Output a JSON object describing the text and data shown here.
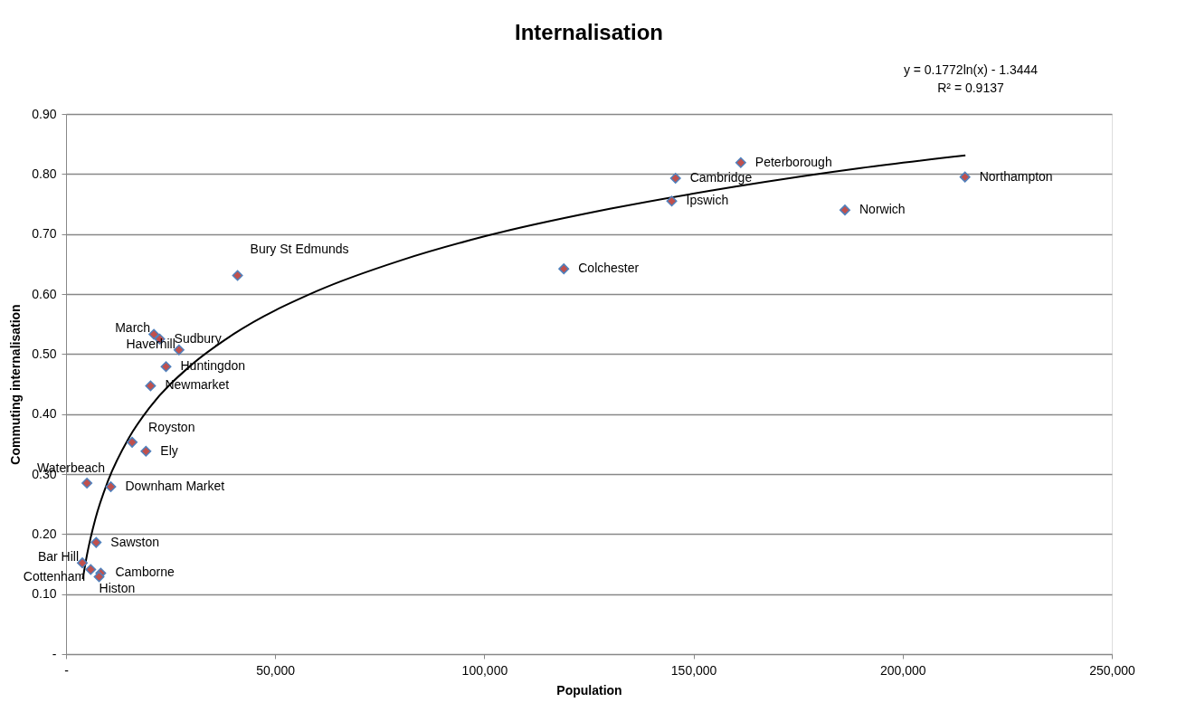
{
  "chart_data": {
    "type": "scatter",
    "title": "Internalisation",
    "xlabel": "Population",
    "ylabel": "Commuting internalisation",
    "xlim": [
      0,
      250000
    ],
    "xticks": [
      {
        "value": 0,
        "label": "-"
      },
      {
        "value": 50000,
        "label": "50,000"
      },
      {
        "value": 100000,
        "label": "100,000"
      },
      {
        "value": 150000,
        "label": "150,000"
      },
      {
        "value": 200000,
        "label": "200,000"
      },
      {
        "value": 250000,
        "label": "250,000"
      }
    ],
    "ylim": [
      0,
      0.9
    ],
    "yticks": [
      {
        "value": 0,
        "label": "-"
      },
      {
        "value": 0.1,
        "label": "0.10"
      },
      {
        "value": 0.2,
        "label": "0.20"
      },
      {
        "value": 0.3,
        "label": "0.30"
      },
      {
        "value": 0.4,
        "label": "0.40"
      },
      {
        "value": 0.5,
        "label": "0.50"
      },
      {
        "value": 0.6,
        "label": "0.60"
      },
      {
        "value": 0.7,
        "label": "0.70"
      },
      {
        "value": 0.8,
        "label": "0.80"
      },
      {
        "value": 0.9,
        "label": "0.90"
      }
    ],
    "grid": "y",
    "marker": "diamond",
    "series": [
      {
        "type": "scatter",
        "color": "#c0504d",
        "x": [
          214900,
          161300,
          145700,
          144800,
          186200,
          119000,
          41000,
          21000,
          22400,
          27000,
          23900,
          20200,
          15800,
          19100,
          5000,
          10700,
          7200,
          3900,
          5900,
          8300,
          7900
        ],
        "values": [
          0.795,
          0.819,
          0.793,
          0.755,
          0.74,
          0.642,
          0.631,
          0.533,
          0.525,
          0.507,
          0.479,
          0.447,
          0.353,
          0.338,
          0.285,
          0.279,
          0.186,
          0.152,
          0.141,
          0.135,
          0.129
        ]
      },
      {
        "type": "line",
        "color": "#000000",
        "marker": "none",
        "x": [
          4000,
          5000,
          7000,
          10000,
          15000,
          20000,
          30000,
          40000,
          60000,
          80000,
          100000,
          130000,
          160000,
          190000,
          215000
        ],
        "values": [
          0.125,
          0.165,
          0.225,
          0.288,
          0.36,
          0.411,
          0.482,
          0.533,
          0.605,
          0.656,
          0.696,
          0.742,
          0.779,
          0.81,
          0.831
        ]
      }
    ],
    "annotations": [
      "y = 0.1772ln(x) - 1.3444",
      "R² = 0.9137",
      {
        "text": "Northampton",
        "x": 214900,
        "y": 0.795
      },
      {
        "text": "Peterborough",
        "x": 161300,
        "y": 0.819
      },
      {
        "text": "Cambridge",
        "x": 145700,
        "y": 0.793
      },
      {
        "text": "Ipswich",
        "x": 144800,
        "y": 0.755
      },
      {
        "text": "Norwich",
        "x": 186200,
        "y": 0.74
      },
      {
        "text": "Colchester",
        "x": 119000,
        "y": 0.642
      },
      {
        "text": "Bury St Edmunds",
        "x": 41000,
        "y": 0.631
      },
      {
        "text": "March",
        "x": 21000,
        "y": 0.533
      },
      {
        "text": "Sudbury",
        "x": 22400,
        "y": 0.525
      },
      {
        "text": "Haverhill",
        "x": 27000,
        "y": 0.507
      },
      {
        "text": "Huntingdon",
        "x": 23900,
        "y": 0.479
      },
      {
        "text": "Newmarket",
        "x": 20200,
        "y": 0.447
      },
      {
        "text": "Royston",
        "x": 15800,
        "y": 0.353
      },
      {
        "text": "Ely",
        "x": 19100,
        "y": 0.338
      },
      {
        "text": "Waterbeach",
        "x": 5000,
        "y": 0.285
      },
      {
        "text": "Downham Market",
        "x": 10700,
        "y": 0.279
      },
      {
        "text": "Sawston",
        "x": 7200,
        "y": 0.186
      },
      {
        "text": "Bar Hill",
        "x": 3900,
        "y": 0.152
      },
      {
        "text": "Cottenham",
        "x": 5900,
        "y": 0.141
      },
      {
        "text": "Camborne",
        "x": 8300,
        "y": 0.135
      },
      {
        "text": "Histon",
        "x": 7900,
        "y": 0.129
      }
    ]
  }
}
